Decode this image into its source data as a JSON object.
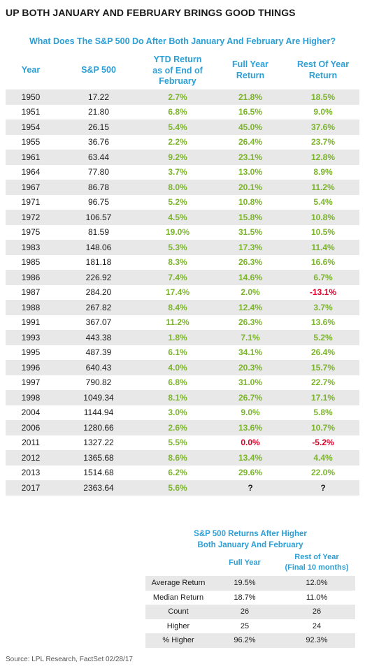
{
  "title": "UP BOTH JANUARY AND FEBRUARY BRINGS GOOD THINGS",
  "subtitle": "What Does The S&P 500 Do After Both January And February Are Higher?",
  "colors": {
    "accent": "#2b9fd6",
    "positive": "#7bb52a",
    "negative": "#e0002a",
    "shade": "#e8e8e8"
  },
  "chart_data": [
    {
      "type": "table",
      "title": "What Does The S&P 500 Do After Both January And February Are Higher?",
      "columns": [
        "Year",
        "S&P 500",
        "YTD Return as of End of February",
        "Full Year Return",
        "Rest Of Year Return"
      ],
      "rows": [
        [
          "1950",
          "17.22",
          "2.7%",
          "21.8%",
          "18.5%"
        ],
        [
          "1951",
          "21.80",
          "6.8%",
          "16.5%",
          "9.0%"
        ],
        [
          "1954",
          "26.15",
          "5.4%",
          "45.0%",
          "37.6%"
        ],
        [
          "1955",
          "36.76",
          "2.2%",
          "26.4%",
          "23.7%"
        ],
        [
          "1961",
          "63.44",
          "9.2%",
          "23.1%",
          "12.8%"
        ],
        [
          "1964",
          "77.80",
          "3.7%",
          "13.0%",
          "8.9%"
        ],
        [
          "1967",
          "86.78",
          "8.0%",
          "20.1%",
          "11.2%"
        ],
        [
          "1971",
          "96.75",
          "5.2%",
          "10.8%",
          "5.4%"
        ],
        [
          "1972",
          "106.57",
          "4.5%",
          "15.8%",
          "10.8%"
        ],
        [
          "1975",
          "81.59",
          "19.0%",
          "31.5%",
          "10.5%"
        ],
        [
          "1983",
          "148.06",
          "5.3%",
          "17.3%",
          "11.4%"
        ],
        [
          "1985",
          "181.18",
          "8.3%",
          "26.3%",
          "16.6%"
        ],
        [
          "1986",
          "226.92",
          "7.4%",
          "14.6%",
          "6.7%"
        ],
        [
          "1987",
          "284.20",
          "17.4%",
          "2.0%",
          "-13.1%"
        ],
        [
          "1988",
          "267.82",
          "8.4%",
          "12.4%",
          "3.7%"
        ],
        [
          "1991",
          "367.07",
          "11.2%",
          "26.3%",
          "13.6%"
        ],
        [
          "1993",
          "443.38",
          "1.8%",
          "7.1%",
          "5.2%"
        ],
        [
          "1995",
          "487.39",
          "6.1%",
          "34.1%",
          "26.4%"
        ],
        [
          "1996",
          "640.43",
          "4.0%",
          "20.3%",
          "15.7%"
        ],
        [
          "1997",
          "790.82",
          "6.8%",
          "31.0%",
          "22.7%"
        ],
        [
          "1998",
          "1049.34",
          "8.1%",
          "26.7%",
          "17.1%"
        ],
        [
          "2004",
          "1144.94",
          "3.0%",
          "9.0%",
          "5.8%"
        ],
        [
          "2006",
          "1280.66",
          "2.6%",
          "13.6%",
          "10.7%"
        ],
        [
          "2011",
          "1327.22",
          "5.5%",
          "0.0%",
          "-5.2%"
        ],
        [
          "2012",
          "1365.68",
          "8.6%",
          "13.4%",
          "4.4%"
        ],
        [
          "2013",
          "1514.68",
          "6.2%",
          "29.6%",
          "22.0%"
        ],
        [
          "2017",
          "2363.64",
          "5.6%",
          "?",
          "?"
        ]
      ]
    },
    {
      "type": "table",
      "title": "S&P 500 Returns After Higher Both January And February",
      "columns": [
        "",
        "Full Year",
        "Rest of Year (Final 10 months)"
      ],
      "rows": [
        [
          "Average Return",
          "19.5%",
          "12.0%"
        ],
        [
          "Median Return",
          "18.7%",
          "11.0%"
        ],
        [
          "Count",
          "26",
          "26"
        ],
        [
          "Higher",
          "25",
          "24"
        ],
        [
          "% Higher",
          "96.2%",
          "92.3%"
        ]
      ]
    }
  ],
  "main_headers": {
    "year": "Year",
    "sp500": "S&P 500",
    "ytd_1": "YTD Return",
    "ytd_2": "as of End of",
    "ytd_3": "February",
    "fy_1": "Full Year",
    "fy_2": "Return",
    "roy_1": "Rest Of Year",
    "roy_2": "Return"
  },
  "summary_title_1": "S&P 500 Returns After Higher",
  "summary_title_2": "Both January And February",
  "summary_headers": {
    "fy": "Full Year",
    "roy_1": "Rest of Year",
    "roy_2": "(Final 10 months)"
  },
  "source": "Source: LPL Research, FactSet   02/28/17"
}
